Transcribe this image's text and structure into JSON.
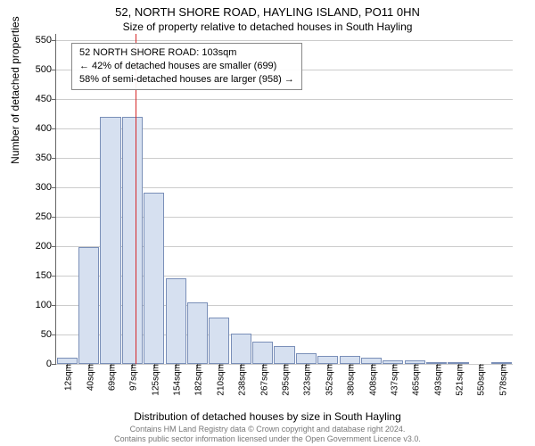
{
  "title": "52, NORTH SHORE ROAD, HAYLING ISLAND, PO11 0HN",
  "subtitle": "Size of property relative to detached houses in South Hayling",
  "infobox": {
    "line1": "52 NORTH SHORE ROAD: 103sqm",
    "line2": "← 42% of detached houses are smaller (699)",
    "line3": "58% of semi-detached houses are larger (958) →"
  },
  "chart": {
    "type": "histogram",
    "ylabel": "Number of detached properties",
    "xlabel": "Distribution of detached houses by size in South Hayling",
    "ylim": [
      0,
      560
    ],
    "yticks": [
      0,
      50,
      100,
      150,
      200,
      250,
      300,
      350,
      400,
      450,
      500,
      550
    ],
    "xtick_labels": [
      "12sqm",
      "40sqm",
      "69sqm",
      "97sqm",
      "125sqm",
      "154sqm",
      "182sqm",
      "210sqm",
      "238sqm",
      "267sqm",
      "295sqm",
      "323sqm",
      "352sqm",
      "380sqm",
      "408sqm",
      "437sqm",
      "465sqm",
      "493sqm",
      "521sqm",
      "550sqm",
      "578sqm"
    ],
    "values": [
      10,
      198,
      420,
      420,
      290,
      145,
      105,
      78,
      52,
      38,
      30,
      18,
      14,
      14,
      10,
      6,
      6,
      3,
      3,
      0,
      3
    ],
    "bar_fill": "#d6e0f0",
    "bar_stroke": "#7a8fb8",
    "grid_color": "#cccccc",
    "background": "#ffffff",
    "marker_value": 103,
    "marker_color": "#d62728",
    "x_domain": [
      0,
      592
    ],
    "bar_width_ratio": 0.95,
    "title_fontsize": 13,
    "label_fontsize": 12,
    "tick_fontsize": 11
  },
  "footer": {
    "line1": "Contains HM Land Registry data © Crown copyright and database right 2024.",
    "line2": "Contains public sector information licensed under the Open Government Licence v3.0."
  }
}
